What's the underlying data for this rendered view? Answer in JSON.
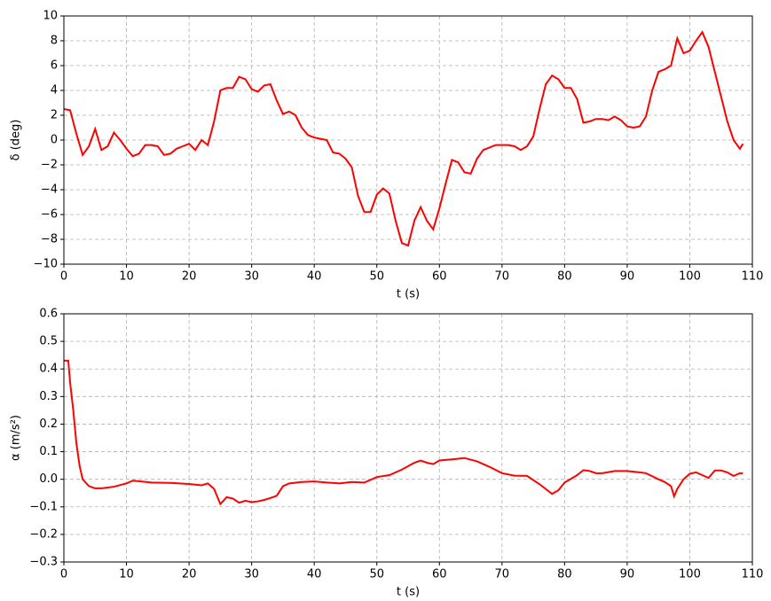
{
  "chart_data": [
    {
      "type": "line",
      "xlabel": "t (s)",
      "ylabel": "δ (deg)",
      "color": "#ff0000",
      "grid": true,
      "xlim": [
        0,
        110
      ],
      "xticks": [
        0,
        10,
        20,
        30,
        40,
        50,
        60,
        70,
        80,
        90,
        100,
        110
      ],
      "ylim": [
        -10,
        10
      ],
      "yticks": [
        {
          "value": -10,
          "label": "−10"
        },
        {
          "value": -8,
          "label": "−8"
        },
        {
          "value": -6,
          "label": "−6"
        },
        {
          "value": -4,
          "label": "−4"
        },
        {
          "value": -2,
          "label": "−2"
        },
        0,
        2,
        4,
        6,
        8,
        10
      ],
      "x": [
        0,
        1,
        2,
        3,
        4,
        5,
        6,
        7,
        8,
        9,
        10,
        11,
        12,
        13,
        14,
        15,
        16,
        17,
        18,
        19,
        20,
        21,
        22,
        23,
        24,
        25,
        26,
        27,
        28,
        29,
        30,
        31,
        32,
        33,
        34,
        35,
        36,
        37,
        38,
        39,
        40,
        41,
        42,
        43,
        44,
        45,
        46,
        47,
        48,
        49,
        50,
        51,
        52,
        53,
        54,
        55,
        56,
        57,
        58,
        59,
        60,
        61,
        62,
        63,
        64,
        65,
        66,
        67,
        68,
        69,
        70,
        71,
        72,
        73,
        74,
        75,
        76,
        77,
        78,
        79,
        80,
        81,
        82,
        83,
        84,
        85,
        86,
        87,
        88,
        89,
        90,
        91,
        92,
        93,
        94,
        95,
        96,
        97,
        98,
        99,
        100,
        101,
        102,
        103,
        104,
        105,
        106,
        107,
        108,
        108.5
      ],
      "values": [
        2.5,
        2.4,
        0.5,
        -1.2,
        -0.5,
        0.9,
        -0.8,
        -0.5,
        0.6,
        0.0,
        -0.7,
        -1.3,
        -1.1,
        -0.4,
        -0.4,
        -0.5,
        -1.2,
        -1.1,
        -0.7,
        -0.5,
        -0.3,
        -0.8,
        0.0,
        -0.4,
        1.5,
        4.0,
        4.2,
        4.2,
        5.1,
        4.9,
        4.1,
        3.9,
        4.4,
        4.5,
        3.2,
        2.1,
        2.3,
        2.0,
        1.0,
        0.4,
        0.2,
        0.1,
        0.0,
        -1.0,
        -1.1,
        -1.5,
        -2.2,
        -4.5,
        -5.8,
        -5.8,
        -4.4,
        -3.9,
        -4.3,
        -6.5,
        -8.3,
        -8.5,
        -6.5,
        -5.4,
        -6.5,
        -7.2,
        -5.5,
        -3.5,
        -1.6,
        -1.8,
        -2.6,
        -2.7,
        -1.5,
        -0.8,
        -0.6,
        -0.4,
        -0.4,
        -0.4,
        -0.5,
        -0.8,
        -0.5,
        0.3,
        2.5,
        4.5,
        5.2,
        4.9,
        4.2,
        4.2,
        3.3,
        1.4,
        1.5,
        1.7,
        1.7,
        1.6,
        1.9,
        1.6,
        1.1,
        1.0,
        1.1,
        1.9,
        4.0,
        5.5,
        5.7,
        6.0,
        8.2,
        7.0,
        7.2,
        8.0,
        8.7,
        7.5,
        5.5,
        3.5,
        1.5,
        0.0,
        -0.7,
        -0.3
      ]
    },
    {
      "type": "line",
      "xlabel": "t (s)",
      "ylabel": "α (m/s²)",
      "color": "#ff0000",
      "grid": true,
      "xlim": [
        0,
        110
      ],
      "xticks": [
        0,
        10,
        20,
        30,
        40,
        50,
        60,
        70,
        80,
        90,
        100,
        110
      ],
      "ylim": [
        -0.3,
        0.6
      ],
      "yticks": [
        {
          "value": -0.3,
          "label": "−0.3"
        },
        {
          "value": -0.2,
          "label": "−0.2"
        },
        {
          "value": -0.1,
          "label": "−0.1"
        },
        {
          "value": 0,
          "label": "0.0"
        },
        0.1,
        0.2,
        0.3,
        0.4,
        0.5,
        0.6
      ],
      "x": [
        0,
        0.7,
        1,
        1.5,
        2,
        2.5,
        3,
        4,
        5,
        6,
        8,
        10,
        11,
        12,
        14,
        17,
        20,
        22,
        23,
        24,
        25,
        26,
        27,
        28,
        29,
        30,
        31,
        32,
        33,
        34,
        35,
        36,
        38,
        40,
        42,
        44,
        46,
        48,
        50,
        52,
        54,
        56,
        57,
        58,
        59,
        60,
        62,
        64,
        66,
        68,
        70,
        72,
        74,
        76,
        78,
        79,
        80,
        82,
        83,
        84,
        85,
        86,
        88,
        90,
        92,
        93,
        95,
        96,
        97,
        97.5,
        98,
        99,
        100,
        101,
        102,
        103,
        104,
        105,
        106,
        107,
        108,
        108.5
      ],
      "values": [
        0.43,
        0.43,
        0.35,
        0.25,
        0.13,
        0.05,
        0.0,
        -0.025,
        -0.033,
        -0.033,
        -0.027,
        -0.015,
        -0.005,
        -0.007,
        -0.012,
        -0.013,
        -0.017,
        -0.022,
        -0.015,
        -0.035,
        -0.09,
        -0.065,
        -0.07,
        -0.085,
        -0.078,
        -0.083,
        -0.08,
        -0.075,
        -0.068,
        -0.06,
        -0.025,
        -0.015,
        -0.01,
        -0.008,
        -0.012,
        -0.015,
        -0.01,
        -0.012,
        0.008,
        0.015,
        0.035,
        0.06,
        0.068,
        0.06,
        0.055,
        0.068,
        0.072,
        0.077,
        0.065,
        0.045,
        0.022,
        0.013,
        0.012,
        -0.018,
        -0.053,
        -0.04,
        -0.012,
        0.015,
        0.033,
        0.03,
        0.022,
        0.022,
        0.03,
        0.03,
        0.025,
        0.022,
        0.0,
        -0.01,
        -0.025,
        -0.062,
        -0.035,
        0.0,
        0.02,
        0.025,
        0.015,
        0.005,
        0.032,
        0.032,
        0.025,
        0.012,
        0.022,
        0.022
      ]
    }
  ]
}
